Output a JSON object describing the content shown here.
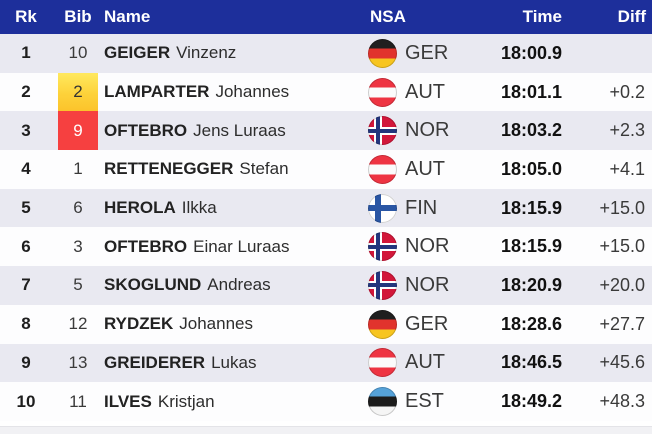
{
  "table": {
    "header": {
      "rank": "Rk",
      "bib": "Bib",
      "name": "Name",
      "nsa": "NSA",
      "time": "Time",
      "diff": "Diff"
    },
    "rows": [
      {
        "rank": "1",
        "bib": "10",
        "last": "GEIGER",
        "first": "Vinzenz",
        "nsa": "GER",
        "time": "18:00.9",
        "diff": ""
      },
      {
        "rank": "2",
        "bib": "2",
        "bib_highlight": "yellow",
        "last": "LAMPARTER",
        "first": "Johannes",
        "nsa": "AUT",
        "time": "18:01.1",
        "diff": "+0.2"
      },
      {
        "rank": "3",
        "bib": "9",
        "bib_highlight": "red",
        "last": "OFTEBRO",
        "first": "Jens Luraas",
        "nsa": "NOR",
        "time": "18:03.2",
        "diff": "+2.3"
      },
      {
        "rank": "4",
        "bib": "1",
        "last": "RETTENEGGER",
        "first": "Stefan",
        "nsa": "AUT",
        "time": "18:05.0",
        "diff": "+4.1"
      },
      {
        "rank": "5",
        "bib": "6",
        "last": "HEROLA",
        "first": "Ilkka",
        "nsa": "FIN",
        "time": "18:15.9",
        "diff": "+15.0"
      },
      {
        "rank": "6",
        "bib": "3",
        "last": "OFTEBRO",
        "first": "Einar Luraas",
        "nsa": "NOR",
        "time": "18:15.9",
        "diff": "+15.0"
      },
      {
        "rank": "7",
        "bib": "5",
        "last": "SKOGLUND",
        "first": "Andreas",
        "nsa": "NOR",
        "time": "18:20.9",
        "diff": "+20.0"
      },
      {
        "rank": "8",
        "bib": "12",
        "last": "RYDZEK",
        "first": "Johannes",
        "nsa": "GER",
        "time": "18:28.6",
        "diff": "+27.7"
      },
      {
        "rank": "9",
        "bib": "13",
        "last": "GREIDERER",
        "first": "Lukas",
        "nsa": "AUT",
        "time": "18:46.5",
        "diff": "+45.6"
      },
      {
        "rank": "10",
        "bib": "11",
        "last": "ILVES",
        "first": "Kristjan",
        "nsa": "EST",
        "time": "18:49.2",
        "diff": "+48.3"
      }
    ],
    "colors": {
      "header_bg": "#1d2f9b",
      "header_text": "#ffffff",
      "row_alt_bg": "#e9e9f1",
      "row_bg": "#fdfdfe",
      "bib_leader_yellow": "#fdd23a",
      "bib_leader_red": "#f64040"
    }
  }
}
